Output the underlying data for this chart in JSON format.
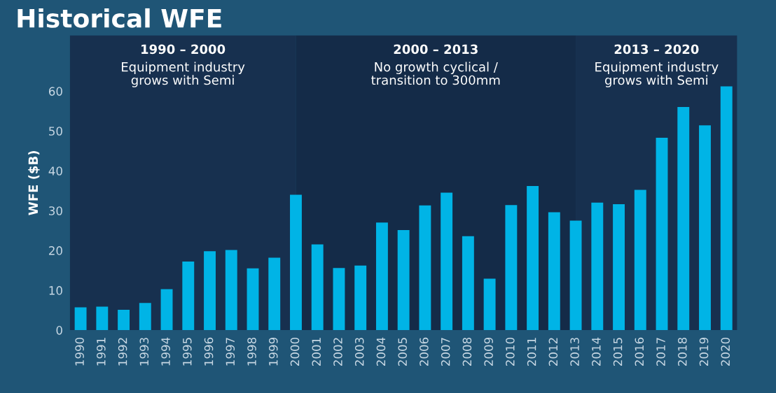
{
  "chart_data": {
    "type": "bar",
    "title": "Historical WFE",
    "ylabel": "WFE ($B)",
    "categories": [
      "1990",
      "1991",
      "1992",
      "1993",
      "1994",
      "1995",
      "1996",
      "1997",
      "1998",
      "1999",
      "2000",
      "2001",
      "2002",
      "2003",
      "2004",
      "2005",
      "2006",
      "2007",
      "2008",
      "2009",
      "2010",
      "2011",
      "2012",
      "2013",
      "2014",
      "2015",
      "2016",
      "2017",
      "2018",
      "2019",
      "2020"
    ],
    "values": [
      5.7,
      5.9,
      5.1,
      6.8,
      10.3,
      17.2,
      19.8,
      20.1,
      15.5,
      18.2,
      34.0,
      21.5,
      15.6,
      16.2,
      27.0,
      25.1,
      31.3,
      34.5,
      23.6,
      12.9,
      31.4,
      36.2,
      29.6,
      27.5,
      32.0,
      31.6,
      35.2,
      48.3,
      56.0,
      51.4,
      61.2
    ],
    "color": "#00b4e6",
    "ylim": [
      0,
      74
    ],
    "yticks": [
      0,
      10,
      20,
      30,
      40,
      50,
      60
    ],
    "grid": false,
    "legend": false,
    "bands": [
      {
        "axis": "x",
        "from": "1990",
        "to": "2000",
        "label": "1990 – 2000\nEquipment industry\ngrows with Semi",
        "color": "#17304f"
      },
      {
        "axis": "x",
        "from": "2000",
        "to": "2013",
        "label": "2000 – 2013\nNo growth cyclical /\ntransition to 300mm",
        "color": "#142b48"
      },
      {
        "axis": "x",
        "from": "2013",
        "to": "2020",
        "label": "2013 – 2020\nEquipment industry\ngrows with Semi",
        "color": "#17304f"
      }
    ]
  }
}
